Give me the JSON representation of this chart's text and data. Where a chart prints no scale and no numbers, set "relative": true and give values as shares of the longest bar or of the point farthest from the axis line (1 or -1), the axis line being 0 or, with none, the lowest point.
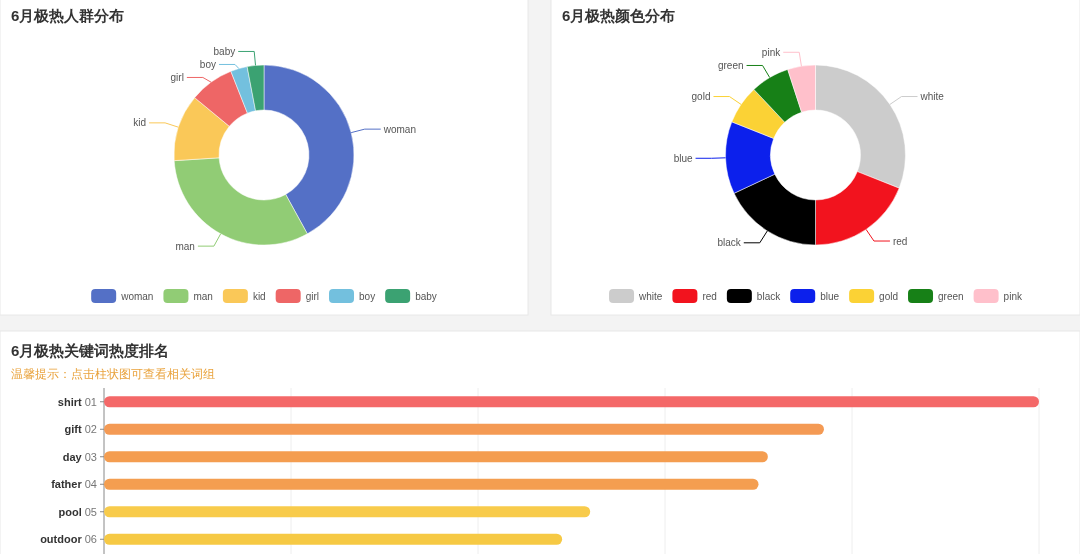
{
  "chart_data": [
    {
      "type": "donut",
      "title": "6月极热人群分布",
      "categories": [
        "woman",
        "man",
        "kid",
        "girl",
        "boy",
        "baby"
      ],
      "values": [
        42,
        32,
        12,
        8,
        3,
        3
      ],
      "colors": [
        "#5470c6",
        "#91cc75",
        "#fac858",
        "#ee6666",
        "#73c0de",
        "#3ba272"
      ],
      "legend": "bottom"
    },
    {
      "type": "donut",
      "title": "6月极热颜色分布",
      "categories": [
        "white",
        "red",
        "black",
        "blue",
        "gold",
        "green",
        "pink"
      ],
      "values": [
        31,
        19,
        18,
        13,
        7,
        7,
        5
      ],
      "colors": [
        "#cccccc",
        "#f2131e",
        "#000000",
        "#0c20ec",
        "#fbd235",
        "#178017",
        "#ffc0cb"
      ],
      "legend": "bottom"
    },
    {
      "type": "bar",
      "orientation": "horizontal",
      "relative": true,
      "title": "6月极热关键词热度排名",
      "subtitle": "温馨提示：点击柱状图可查看相关词组",
      "categories": [
        "shirt 01",
        "gift 02",
        "day 03",
        "father 04",
        "pool 05",
        "outdoor 06"
      ],
      "values": [
        1,
        0.77,
        0.71,
        0.7,
        0.52,
        0.49
      ],
      "colors": [
        "#f46868",
        "#f49a54",
        "#f49d50",
        "#f49e50",
        "#f8cb4b",
        "#f6c944"
      ],
      "grid": "x"
    }
  ]
}
